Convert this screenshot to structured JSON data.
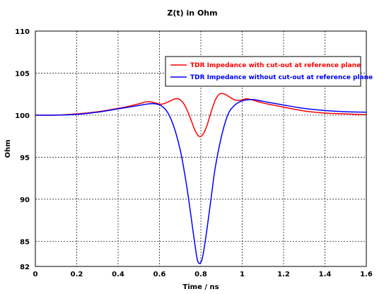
{
  "chart_data": {
    "type": "line",
    "title": "Z(t) in Ohm",
    "xlabel": "Time / ns",
    "ylabel": "Ohm",
    "xlim": [
      0,
      1.6
    ],
    "ylim": [
      82,
      110
    ],
    "x_ticks": [
      0,
      0.2,
      0.4,
      0.6,
      0.8,
      1,
      1.2,
      1.4,
      1.6
    ],
    "x_tick_labels": [
      "0",
      "0.2",
      "0.4",
      "0.6",
      "0.8",
      "1",
      "1.2",
      "1.4",
      "1.6"
    ],
    "y_ticks": [
      82,
      85,
      90,
      95,
      100,
      105,
      110
    ],
    "y_tick_labels": [
      "82",
      "85",
      "90",
      "95",
      "100",
      "105",
      "110"
    ],
    "grid": true,
    "legend_position": "top-right",
    "series": [
      {
        "name": "TDR Impedance with cut-out at reference plane",
        "color": "#ff0000",
        "points": [
          [
            0,
            100.0
          ],
          [
            0.1,
            100.0
          ],
          [
            0.2,
            100.15
          ],
          [
            0.3,
            100.4
          ],
          [
            0.4,
            100.8
          ],
          [
            0.45,
            101.05
          ],
          [
            0.5,
            101.35
          ],
          [
            0.53,
            101.55
          ],
          [
            0.55,
            101.6
          ],
          [
            0.58,
            101.45
          ],
          [
            0.61,
            101.3
          ],
          [
            0.64,
            101.55
          ],
          [
            0.67,
            101.9
          ],
          [
            0.69,
            101.95
          ],
          [
            0.71,
            101.6
          ],
          [
            0.73,
            100.8
          ],
          [
            0.75,
            99.6
          ],
          [
            0.77,
            98.3
          ],
          [
            0.79,
            97.5
          ],
          [
            0.81,
            97.7
          ],
          [
            0.83,
            98.8
          ],
          [
            0.85,
            100.4
          ],
          [
            0.87,
            101.8
          ],
          [
            0.89,
            102.5
          ],
          [
            0.91,
            102.55
          ],
          [
            0.93,
            102.3
          ],
          [
            0.96,
            101.85
          ],
          [
            0.99,
            101.75
          ],
          [
            1.02,
            101.95
          ],
          [
            1.05,
            101.8
          ],
          [
            1.1,
            101.45
          ],
          [
            1.2,
            100.95
          ],
          [
            1.3,
            100.5
          ],
          [
            1.4,
            100.25
          ],
          [
            1.5,
            100.15
          ],
          [
            1.6,
            100.05
          ]
        ]
      },
      {
        "name": "TDR Impedance without cut-out at reference plane",
        "color": "#0000ff",
        "points": [
          [
            0,
            100.0
          ],
          [
            0.1,
            100.0
          ],
          [
            0.2,
            100.1
          ],
          [
            0.3,
            100.35
          ],
          [
            0.4,
            100.75
          ],
          [
            0.45,
            100.95
          ],
          [
            0.5,
            101.15
          ],
          [
            0.55,
            101.35
          ],
          [
            0.58,
            101.35
          ],
          [
            0.61,
            101.1
          ],
          [
            0.64,
            100.3
          ],
          [
            0.67,
            98.6
          ],
          [
            0.7,
            95.9
          ],
          [
            0.72,
            93.3
          ],
          [
            0.74,
            90.2
          ],
          [
            0.76,
            86.6
          ],
          [
            0.78,
            83.2
          ],
          [
            0.79,
            82.4
          ],
          [
            0.8,
            82.5
          ],
          [
            0.81,
            83.3
          ],
          [
            0.83,
            86.5
          ],
          [
            0.85,
            90.2
          ],
          [
            0.87,
            93.8
          ],
          [
            0.9,
            97.5
          ],
          [
            0.93,
            100.0
          ],
          [
            0.96,
            101.1
          ],
          [
            1.0,
            101.7
          ],
          [
            1.05,
            101.85
          ],
          [
            1.1,
            101.65
          ],
          [
            1.2,
            101.2
          ],
          [
            1.3,
            100.8
          ],
          [
            1.4,
            100.55
          ],
          [
            1.5,
            100.4
          ],
          [
            1.6,
            100.35
          ]
        ]
      }
    ]
  }
}
